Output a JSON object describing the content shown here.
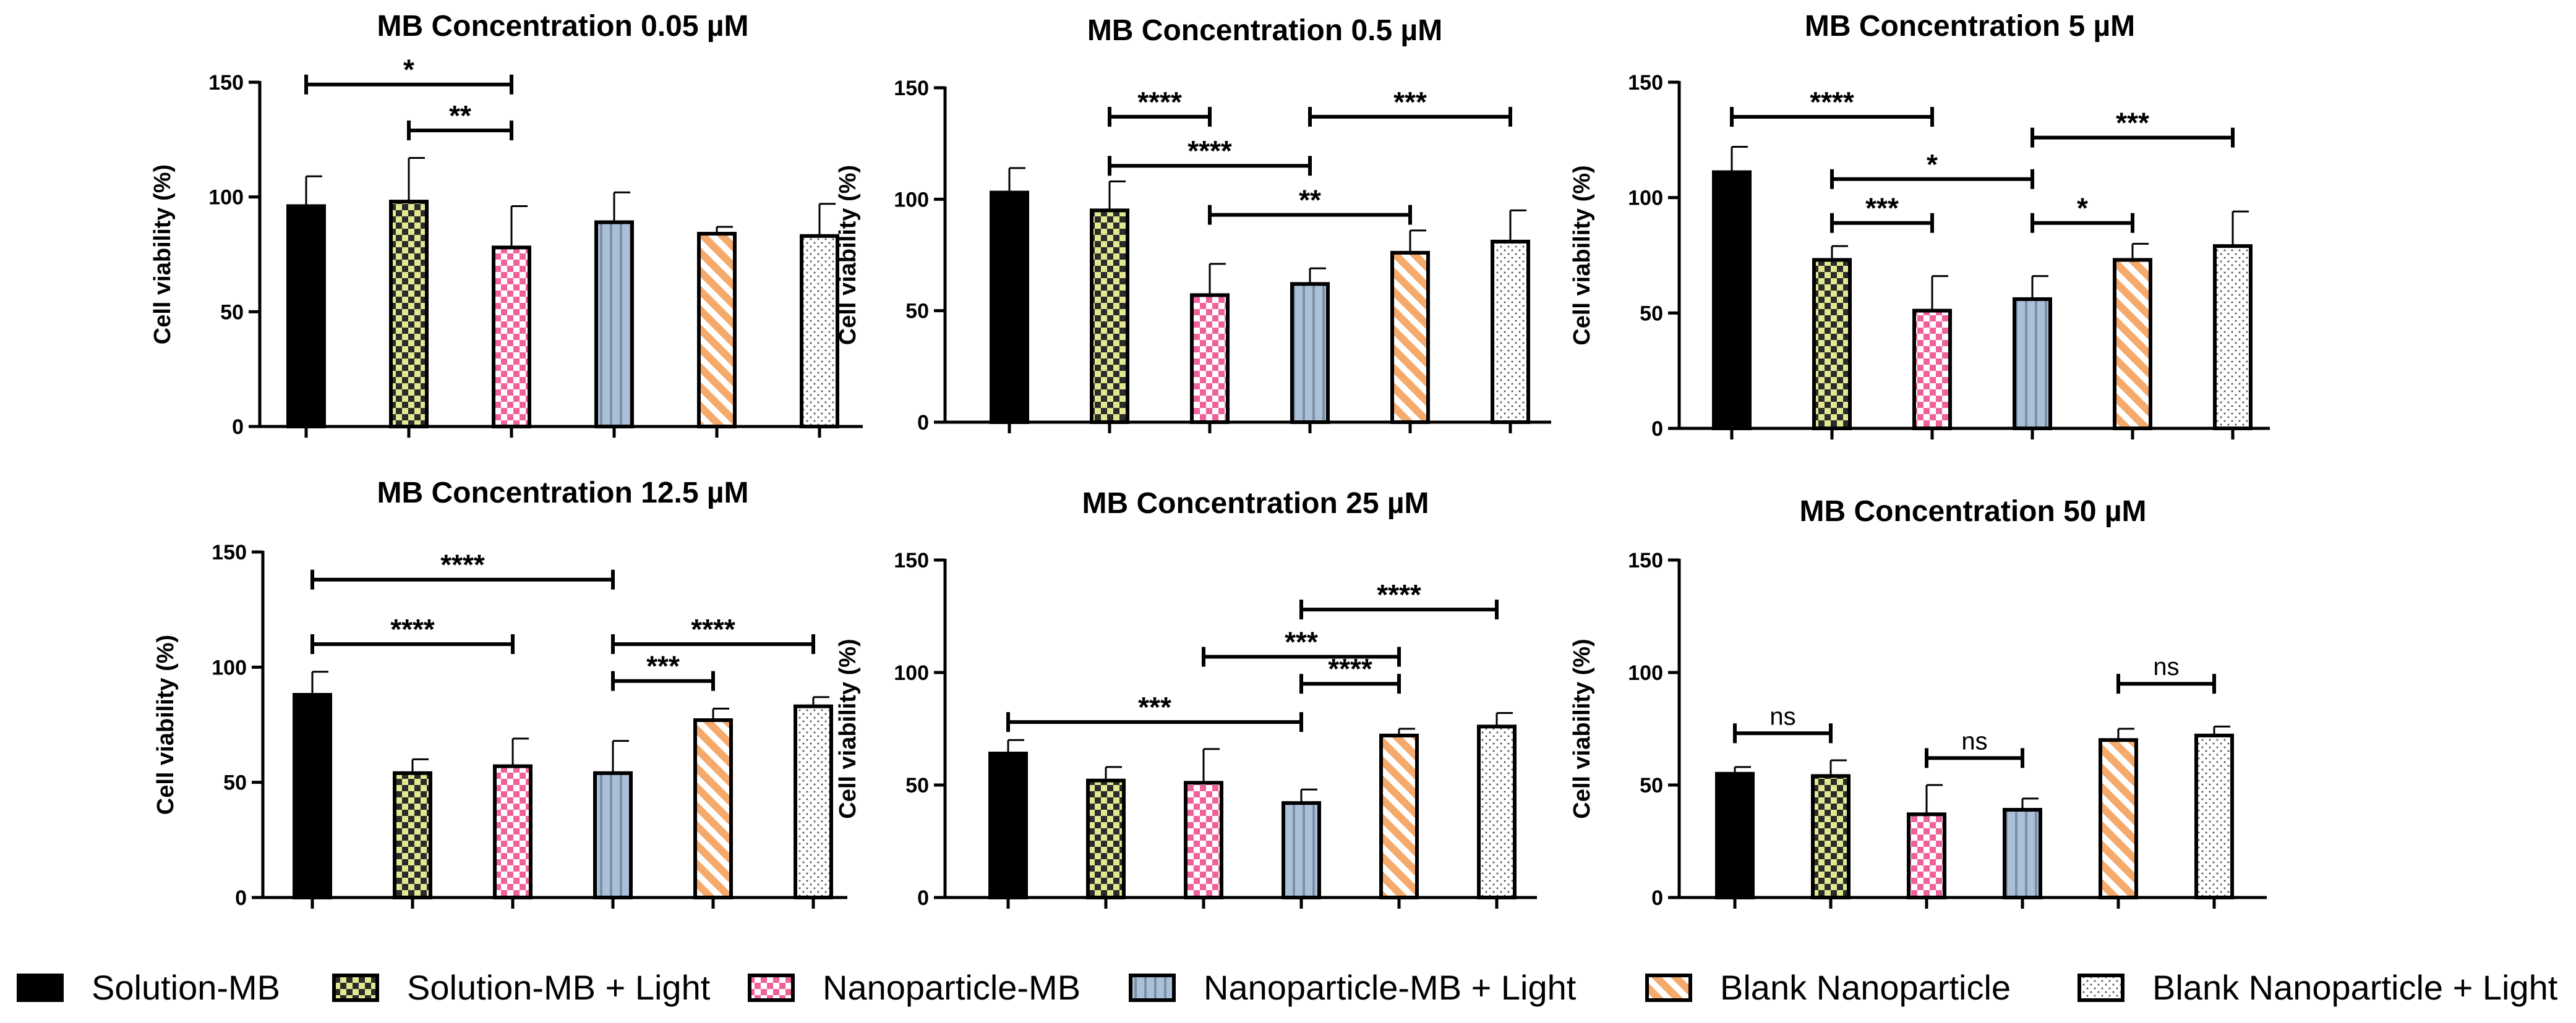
{
  "chart_data": [
    {
      "type": "bar",
      "title": "MB Concentration 0.05 µM",
      "ylabel": "Cell viability (%)",
      "xlabel": "",
      "ylim": [
        0,
        150
      ],
      "yticks": [
        "0",
        "50",
        "100",
        "150"
      ],
      "values": [
        96,
        98,
        78,
        89,
        84,
        83
      ],
      "errors": [
        13,
        19,
        18,
        13,
        3,
        14
      ],
      "comparisons": [
        {
          "from": 0,
          "to": 2,
          "label": "*",
          "level": 149
        },
        {
          "from": 1,
          "to": 2,
          "label": "**",
          "level": 129
        }
      ]
    },
    {
      "type": "bar",
      "title": "MB Concentration 0.5 µM",
      "ylabel": "Cell viability (%)",
      "xlabel": "",
      "ylim": [
        0,
        150
      ],
      "yticks": [
        "0",
        "50",
        "100",
        "150"
      ],
      "values": [
        103,
        95,
        57,
        62,
        76,
        81
      ],
      "errors": [
        11,
        13,
        14,
        7,
        10,
        14
      ],
      "comparisons": [
        {
          "from": 1,
          "to": 2,
          "label": "****",
          "level": 137
        },
        {
          "from": 3,
          "to": 5,
          "label": "***",
          "level": 137
        },
        {
          "from": 1,
          "to": 3,
          "label": "****",
          "level": 115
        },
        {
          "from": 2,
          "to": 4,
          "label": "**",
          "level": 93
        }
      ]
    },
    {
      "type": "bar",
      "title": "MB Concentration 5 µM",
      "ylabel": "Cell viability (%)",
      "xlabel": "",
      "ylim": [
        0,
        150
      ],
      "yticks": [
        "0",
        "50",
        "100",
        "150"
      ],
      "values": [
        111,
        73,
        51,
        56,
        73,
        79
      ],
      "errors": [
        11,
        6,
        15,
        10,
        7,
        15
      ],
      "comparisons": [
        {
          "from": 0,
          "to": 2,
          "label": "****",
          "level": 135
        },
        {
          "from": 3,
          "to": 5,
          "label": "***",
          "level": 126
        },
        {
          "from": 1,
          "to": 3,
          "label": "*",
          "level": 108
        },
        {
          "from": 1,
          "to": 2,
          "label": "***",
          "level": 89
        },
        {
          "from": 3,
          "to": 4,
          "label": "*",
          "level": 89
        }
      ]
    },
    {
      "type": "bar",
      "title": "MB Concentration 12.5 µM",
      "ylabel": "Cell viability (%)",
      "xlabel": "",
      "ylim": [
        0,
        150
      ],
      "yticks": [
        "0",
        "50",
        "100",
        "150"
      ],
      "values": [
        88,
        54,
        57,
        54,
        77,
        83
      ],
      "errors": [
        10,
        6,
        12,
        14,
        5,
        4
      ],
      "comparisons": [
        {
          "from": 0,
          "to": 3,
          "label": "****",
          "level": 138
        },
        {
          "from": 0,
          "to": 2,
          "label": "****",
          "level": 110
        },
        {
          "from": 3,
          "to": 5,
          "label": "****",
          "level": 110
        },
        {
          "from": 3,
          "to": 4,
          "label": "***",
          "level": 94
        }
      ]
    },
    {
      "type": "bar",
      "title": "MB Concentration 25 µM",
      "ylabel": "Cell viability (%)",
      "xlabel": "",
      "ylim": [
        0,
        150
      ],
      "yticks": [
        "0",
        "50",
        "100",
        "150"
      ],
      "values": [
        64,
        52,
        51,
        42,
        72,
        76
      ],
      "errors": [
        6,
        6,
        15,
        6,
        3,
        6
      ],
      "comparisons": [
        {
          "from": 3,
          "to": 5,
          "label": "****",
          "level": 128
        },
        {
          "from": 2,
          "to": 4,
          "label": "***",
          "level": 107
        },
        {
          "from": 3,
          "to": 4,
          "label": "****",
          "level": 95
        },
        {
          "from": 0,
          "to": 3,
          "label": "***",
          "level": 78
        }
      ]
    },
    {
      "type": "bar",
      "title": "MB Concentration 50 µM",
      "ylabel": "Cell viability (%)",
      "xlabel": "",
      "ylim": [
        0,
        150
      ],
      "yticks": [
        "0",
        "50",
        "100",
        "150"
      ],
      "values": [
        55,
        54,
        37,
        39,
        70,
        72
      ],
      "errors": [
        3,
        7,
        13,
        5,
        5,
        4
      ],
      "comparisons": [
        {
          "from": 0,
          "to": 1,
          "label": "ns",
          "level": 73
        },
        {
          "from": 2,
          "to": 3,
          "label": "ns",
          "level": 62
        },
        {
          "from": 4,
          "to": 5,
          "label": "ns",
          "level": 95
        }
      ]
    }
  ],
  "legend": [
    {
      "label": "Solution-MB",
      "pattern": "solid"
    },
    {
      "label": "Solution-MB + Light",
      "pattern": "checker"
    },
    {
      "label": "Nanoparticle-MB",
      "pattern": "pink-checker"
    },
    {
      "label": "Nanoparticle-MB + Light",
      "pattern": "vertical-stripes"
    },
    {
      "label": "Blank Nanoparticle",
      "pattern": "diagonal-stripes"
    },
    {
      "label": "Blank Nanoparticle + Light",
      "pattern": "dots"
    }
  ],
  "colors": {
    "solution_mb": "#000000",
    "solution_mb_light": "#e2e88f",
    "nanoparticle_mb": "#f0609a",
    "nanoparticle_mb_light": "#a9c0d8",
    "blank_nanoparticle": "#f5a96a",
    "blank_nanoparticle_light": "#ffffff"
  }
}
